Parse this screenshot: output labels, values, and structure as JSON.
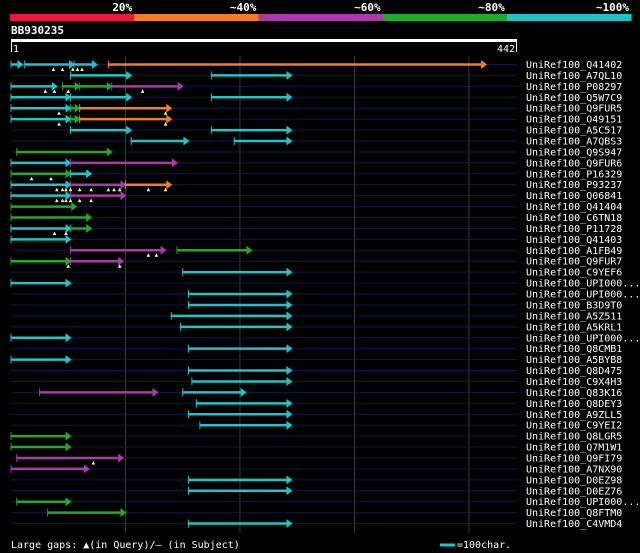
{
  "query": {
    "name": "BB930235",
    "start": "1",
    "end": "442",
    "length": 442
  },
  "legend_bar": [
    {
      "label": "20%",
      "color": "#e8193c"
    },
    {
      "label": "~40%",
      "color": "#f07f1e"
    },
    {
      "label": "~60%",
      "color": "#a43ea6"
    },
    {
      "label": "~80%",
      "color": "#22a82a"
    },
    {
      "label": "~100%",
      "color": "#20c4c8"
    }
  ],
  "colors": {
    "c": "#20c4c8",
    "g": "#22a82a",
    "p": "#a43ea6",
    "o": "#f07f1e",
    "gap": "#ffffaa",
    "track": "#0c1a4a",
    "grid": "#3a3a3a"
  },
  "footer": {
    "gaps_text": "Large gaps: ▲(in Query)/‒ (in Subject)",
    "scale_text": "=100char."
  },
  "hits": [
    {
      "name": "UniRef100_Q41402",
      "segs": [
        [
          0,
          10,
          "c"
        ],
        [
          12,
          55,
          "c"
        ],
        [
          55,
          75,
          "c"
        ],
        [
          85,
          415,
          "o"
        ]
      ],
      "gaps": [
        37,
        45,
        54,
        58,
        62
      ]
    },
    {
      "name": "UniRef100_A7QL10",
      "segs": [
        [
          52,
          105,
          "c"
        ],
        [
          175,
          245,
          "c"
        ]
      ],
      "gaps": []
    },
    {
      "name": "UniRef100_P08297",
      "segs": [
        [
          0,
          40,
          "c"
        ],
        [
          45,
          60,
          "g"
        ],
        [
          60,
          88,
          "g"
        ],
        [
          88,
          150,
          "p"
        ]
      ],
      "gaps": [
        30,
        38,
        50,
        115
      ]
    },
    {
      "name": "UniRef100_Q5W7C9",
      "segs": [
        [
          0,
          52,
          "c"
        ],
        [
          52,
          105,
          "c"
        ],
        [
          175,
          245,
          "c"
        ]
      ],
      "gaps": []
    },
    {
      "name": "UniRef100_Q9FUR5",
      "segs": [
        [
          0,
          52,
          "c"
        ],
        [
          52,
          60,
          "g"
        ],
        [
          60,
          140,
          "o"
        ]
      ],
      "gaps": [
        42,
        135
      ]
    },
    {
      "name": "UniRef100_O49151",
      "segs": [
        [
          0,
          52,
          "c"
        ],
        [
          52,
          60,
          "g"
        ],
        [
          60,
          140,
          "o"
        ]
      ],
      "gaps": [
        42,
        135
      ]
    },
    {
      "name": "UniRef100_A5C517",
      "segs": [
        [
          52,
          105,
          "c"
        ],
        [
          175,
          245,
          "c"
        ]
      ],
      "gaps": []
    },
    {
      "name": "UniRef100_A7QBS3",
      "segs": [
        [
          105,
          155,
          "c"
        ],
        [
          195,
          245,
          "c"
        ]
      ],
      "gaps": []
    },
    {
      "name": "UniRef100_Q9S947",
      "segs": [
        [
          5,
          88,
          "g"
        ]
      ],
      "gaps": []
    },
    {
      "name": "UniRef100_Q9FUR6",
      "segs": [
        [
          0,
          52,
          "c"
        ],
        [
          52,
          145,
          "p"
        ]
      ],
      "gaps": []
    },
    {
      "name": "UniRef100_P16329",
      "segs": [
        [
          0,
          52,
          "g"
        ],
        [
          52,
          70,
          "c"
        ]
      ],
      "gaps": [
        18,
        35
      ]
    },
    {
      "name": "UniRef100_P93237",
      "segs": [
        [
          0,
          52,
          "c"
        ],
        [
          52,
          100,
          "p"
        ],
        [
          100,
          140,
          "o"
        ]
      ],
      "gaps": [
        40,
        45,
        48,
        52,
        60,
        70,
        85,
        90,
        95,
        120,
        135
      ]
    },
    {
      "name": "UniRef100_Q06841",
      "segs": [
        [
          0,
          52,
          "c"
        ],
        [
          52,
          100,
          "p"
        ]
      ],
      "gaps": [
        40,
        45,
        48,
        52,
        60,
        70
      ]
    },
    {
      "name": "UniRef100_Q41404",
      "segs": [
        [
          0,
          57,
          "g"
        ]
      ],
      "gaps": []
    },
    {
      "name": "UniRef100_C6TN18",
      "segs": [
        [
          0,
          70,
          "g"
        ]
      ],
      "gaps": []
    },
    {
      "name": "UniRef100_P11728",
      "segs": [
        [
          0,
          52,
          "c"
        ],
        [
          52,
          70,
          "g"
        ]
      ],
      "gaps": [
        38,
        48
      ]
    },
    {
      "name": "UniRef100_Q41403",
      "segs": [
        [
          0,
          52,
          "c"
        ]
      ],
      "gaps": []
    },
    {
      "name": "UniRef100_A1FB49",
      "segs": [
        [
          52,
          135,
          "p"
        ],
        [
          145,
          210,
          "g"
        ]
      ],
      "gaps": [
        120,
        127
      ]
    },
    {
      "name": "UniRef100_Q9FUR7",
      "segs": [
        [
          0,
          52,
          "g"
        ],
        [
          52,
          98,
          "p"
        ]
      ],
      "gaps": [
        50,
        95
      ]
    },
    {
      "name": "UniRef100_C9YEF6",
      "segs": [
        [
          150,
          245,
          "c"
        ]
      ],
      "gaps": []
    },
    {
      "name": "UniRef100_UPI000...",
      "segs": [
        [
          0,
          52,
          "c"
        ]
      ],
      "gaps": []
    },
    {
      "name": "UniRef100_UPI000...",
      "segs": [
        [
          155,
          245,
          "c"
        ]
      ],
      "gaps": []
    },
    {
      "name": "UniRef100_B3D9T0",
      "segs": [
        [
          155,
          245,
          "c"
        ]
      ],
      "gaps": []
    },
    {
      "name": "UniRef100_A5Z511",
      "segs": [
        [
          140,
          245,
          "c"
        ]
      ],
      "gaps": []
    },
    {
      "name": "UniRef100_A5KRL1",
      "segs": [
        [
          148,
          245,
          "c"
        ]
      ],
      "gaps": []
    },
    {
      "name": "UniRef100_UPI000...",
      "segs": [
        [
          0,
          52,
          "c"
        ]
      ],
      "gaps": []
    },
    {
      "name": "UniRef100_Q8CMB1",
      "segs": [
        [
          155,
          245,
          "c"
        ]
      ],
      "gaps": []
    },
    {
      "name": "UniRef100_A5BYB8",
      "segs": [
        [
          0,
          52,
          "c"
        ]
      ],
      "gaps": []
    },
    {
      "name": "UniRef100_Q8D475",
      "segs": [
        [
          155,
          245,
          "c"
        ]
      ],
      "gaps": []
    },
    {
      "name": "UniRef100_C9X4H3",
      "segs": [
        [
          158,
          245,
          "c"
        ]
      ],
      "gaps": []
    },
    {
      "name": "UniRef100_Q83K16",
      "segs": [
        [
          25,
          128,
          "p"
        ],
        [
          150,
          205,
          "c"
        ]
      ],
      "gaps": []
    },
    {
      "name": "UniRef100_Q8DEY3",
      "segs": [
        [
          162,
          245,
          "c"
        ]
      ],
      "gaps": []
    },
    {
      "name": "UniRef100_A9ZLL5",
      "segs": [
        [
          155,
          245,
          "c"
        ]
      ],
      "gaps": []
    },
    {
      "name": "UniRef100_C9YEI2",
      "segs": [
        [
          165,
          245,
          "c"
        ]
      ],
      "gaps": []
    },
    {
      "name": "UniRef100_Q8LGR5",
      "segs": [
        [
          0,
          52,
          "g"
        ]
      ],
      "gaps": []
    },
    {
      "name": "UniRef100_Q7M1W1",
      "segs": [
        [
          0,
          52,
          "g"
        ]
      ],
      "gaps": []
    },
    {
      "name": "UniRef100_Q9FI79",
      "segs": [
        [
          5,
          98,
          "p"
        ]
      ],
      "gaps": [
        72
      ]
    },
    {
      "name": "UniRef100_A7NX90",
      "segs": [
        [
          0,
          68,
          "p"
        ]
      ],
      "gaps": []
    },
    {
      "name": "UniRef100_D0EZ98",
      "segs": [
        [
          155,
          245,
          "c"
        ]
      ],
      "gaps": []
    },
    {
      "name": "UniRef100_D0EZ76",
      "segs": [
        [
          155,
          245,
          "c"
        ]
      ],
      "gaps": []
    },
    {
      "name": "UniRef100_UPI000...",
      "segs": [
        [
          5,
          52,
          "g"
        ]
      ],
      "gaps": []
    },
    {
      "name": "UniRef100_Q8FTM0",
      "segs": [
        [
          32,
          100,
          "g"
        ]
      ],
      "gaps": []
    },
    {
      "name": "UniRef100_C4VMD4",
      "segs": [
        [
          155,
          245,
          "c"
        ]
      ],
      "gaps": []
    }
  ]
}
